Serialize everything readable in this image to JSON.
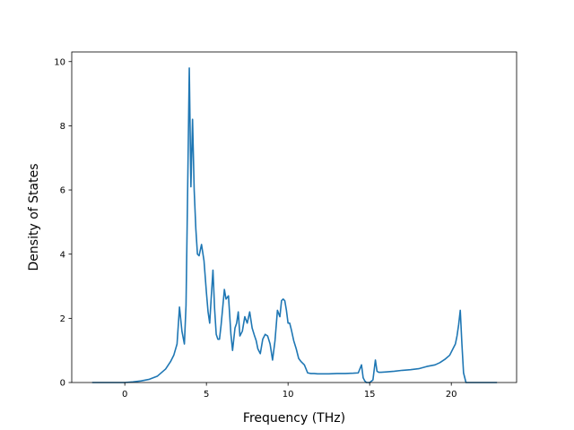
{
  "chart_data": {
    "type": "line",
    "title": "",
    "xlabel": "Frequency (THz)",
    "ylabel": "Density of States",
    "xlim": [
      -3.25,
      24.0
    ],
    "ylim": [
      0,
      10.3
    ],
    "xticks": [
      0,
      5,
      10,
      15,
      20
    ],
    "xtick_labels": [
      "0",
      "5",
      "10",
      "15",
      "20"
    ],
    "yticks": [
      0,
      2,
      4,
      6,
      8,
      10
    ],
    "ytick_labels": [
      "0",
      "2",
      "4",
      "6",
      "8",
      "10"
    ],
    "grid": false,
    "legend": "none",
    "series": [
      {
        "color": "#1f77b4",
        "x": [
          -2.0,
          -1.0,
          0.0,
          0.5,
          1.0,
          1.5,
          2.0,
          2.5,
          2.8,
          3.0,
          3.2,
          3.35,
          3.5,
          3.65,
          3.75,
          3.85,
          3.95,
          4.05,
          4.15,
          4.25,
          4.35,
          4.45,
          4.55,
          4.7,
          4.85,
          5.0,
          5.1,
          5.2,
          5.3,
          5.4,
          5.5,
          5.6,
          5.7,
          5.8,
          5.9,
          6.0,
          6.1,
          6.2,
          6.35,
          6.5,
          6.6,
          6.75,
          6.85,
          6.95,
          7.05,
          7.2,
          7.35,
          7.5,
          7.65,
          7.8,
          7.95,
          8.05,
          8.15,
          8.3,
          8.45,
          8.6,
          8.75,
          8.9,
          9.05,
          9.2,
          9.35,
          9.5,
          9.6,
          9.7,
          9.8,
          9.9,
          10.0,
          10.1,
          10.2,
          10.35,
          10.5,
          10.65,
          10.8,
          11.0,
          11.2,
          11.4,
          11.6,
          11.8,
          12.5,
          13.0,
          13.5,
          14.0,
          14.3,
          14.5,
          14.6,
          14.7,
          14.8,
          15.0,
          15.2,
          15.35,
          15.45,
          15.55,
          15.7,
          16.0,
          16.5,
          17.0,
          17.5,
          18.0,
          18.5,
          19.0,
          19.3,
          19.6,
          19.9,
          20.1,
          20.25,
          20.35,
          20.45,
          20.55,
          20.65,
          20.75,
          20.9,
          21.2,
          22.0,
          22.8
        ],
        "y": [
          0.0,
          0.0,
          0.0,
          0.02,
          0.05,
          0.1,
          0.2,
          0.42,
          0.65,
          0.85,
          1.2,
          2.35,
          1.6,
          1.2,
          2.4,
          6.0,
          9.8,
          6.1,
          8.2,
          6.0,
          4.8,
          4.0,
          3.95,
          4.3,
          3.8,
          2.8,
          2.2,
          1.85,
          2.7,
          3.5,
          2.3,
          1.5,
          1.35,
          1.35,
          1.8,
          2.35,
          2.9,
          2.6,
          2.7,
          1.5,
          1.0,
          1.7,
          1.85,
          2.2,
          1.45,
          1.6,
          2.05,
          1.85,
          2.2,
          1.7,
          1.45,
          1.3,
          1.05,
          0.9,
          1.35,
          1.5,
          1.45,
          1.2,
          0.7,
          1.3,
          2.25,
          2.05,
          2.55,
          2.6,
          2.55,
          2.25,
          1.85,
          1.85,
          1.65,
          1.3,
          1.05,
          0.75,
          0.65,
          0.55,
          0.3,
          0.28,
          0.28,
          0.27,
          0.27,
          0.28,
          0.28,
          0.29,
          0.3,
          0.55,
          0.15,
          0.05,
          0.0,
          0.0,
          0.08,
          0.7,
          0.35,
          0.32,
          0.32,
          0.33,
          0.35,
          0.38,
          0.4,
          0.43,
          0.5,
          0.55,
          0.62,
          0.72,
          0.85,
          1.05,
          1.2,
          1.45,
          1.8,
          2.25,
          1.2,
          0.3,
          0.0,
          0.0,
          0.0,
          0.0
        ]
      }
    ]
  }
}
